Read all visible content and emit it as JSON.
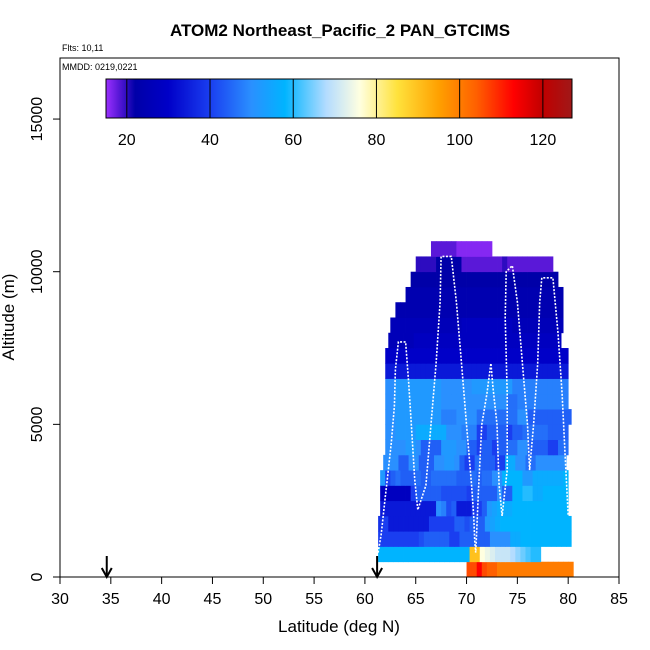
{
  "chart_data": {
    "type": "heatmap",
    "title": "ATOM2 Northeast_Pacific_2 PAN_GTCIMS",
    "flights_label": "Flts: 10,11",
    "dates_label": "MMDD: 0219,0221",
    "xlabel": "Latitude (deg N)",
    "ylabel": "Altitude (m)",
    "xlim": [
      30,
      85
    ],
    "ylim": [
      0,
      17000
    ],
    "xticks": [
      "30",
      "35",
      "40",
      "45",
      "50",
      "55",
      "60",
      "65",
      "70",
      "75",
      "80",
      "85"
    ],
    "yticks": [
      "0",
      "5000",
      "10000",
      "15000"
    ],
    "colorbar": {
      "range": [
        15,
        127
      ],
      "ticks": [
        "20",
        "40",
        "60",
        "80",
        "100",
        "120"
      ],
      "stops": [
        {
          "v": 15,
          "c": "#9b30ff"
        },
        {
          "v": 18,
          "c": "#5a18d8"
        },
        {
          "v": 22,
          "c": "#0000a8"
        },
        {
          "v": 30,
          "c": "#0000c8"
        },
        {
          "v": 40,
          "c": "#1a3ef0"
        },
        {
          "v": 50,
          "c": "#2a90ff"
        },
        {
          "v": 58,
          "c": "#00b4ff"
        },
        {
          "v": 68,
          "c": "#b4dcff"
        },
        {
          "v": 76,
          "c": "#ffffe0"
        },
        {
          "v": 85,
          "c": "#ffe23c"
        },
        {
          "v": 95,
          "c": "#ffa000"
        },
        {
          "v": 104,
          "c": "#ff6000"
        },
        {
          "v": 113,
          "c": "#ff0000"
        },
        {
          "v": 120,
          "c": "#c00000"
        },
        {
          "v": 127,
          "c": "#a01818"
        }
      ]
    },
    "arrows_latitude": [
      34.6,
      61.2
    ],
    "grid_lat0": 61.0,
    "grid_dlat": 0.5,
    "grid_alt_step": 500,
    "rows": [
      {
        "alt": 0,
        "a": 70.0,
        "b": 80.5,
        "s": [
          106,
          106,
          113,
          106,
          104,
          104,
          100,
          100,
          100,
          100,
          100,
          100,
          100,
          100,
          100,
          100,
          100,
          100,
          100,
          100,
          100
        ]
      },
      {
        "alt": 500,
        "a": 61.3,
        "b": 80.5,
        "s": [
          58,
          58,
          58,
          58,
          58,
          58,
          58,
          58,
          58,
          58,
          58,
          58,
          58,
          58,
          58,
          58,
          58,
          58,
          90,
          90,
          76,
          74,
          72,
          70,
          70,
          70,
          68,
          66,
          64,
          62,
          60,
          60
        ]
      },
      {
        "alt": 1000,
        "a": 61.3,
        "b": 80.5,
        "s": [
          40,
          40,
          40,
          40,
          40,
          40,
          40,
          40,
          42,
          44,
          44,
          44,
          44,
          44,
          40,
          40,
          44,
          44,
          44,
          44,
          44,
          44,
          50,
          50,
          50,
          50,
          56,
          56,
          58,
          58,
          58,
          58,
          58,
          58,
          58,
          58,
          58,
          58
        ]
      },
      {
        "alt": 1500,
        "a": 61.3,
        "b": 80.5,
        "s": [
          38,
          40,
          34,
          34,
          34,
          34,
          34,
          34,
          34,
          34,
          40,
          40,
          40,
          40,
          40,
          44,
          44,
          42,
          44,
          44,
          44,
          52,
          54,
          56,
          58,
          58,
          58,
          58,
          58,
          58,
          58,
          58,
          58,
          58,
          58,
          58,
          58,
          58
        ]
      },
      {
        "alt": 2000,
        "a": 61.5,
        "b": 80.5,
        "s": [
          34,
          34,
          34,
          34,
          34,
          34,
          34,
          34,
          34,
          34,
          34,
          50,
          48,
          42,
          44,
          34,
          34,
          34,
          40,
          40,
          44,
          52,
          54,
          56,
          56,
          56,
          58,
          58,
          58,
          58,
          58,
          58,
          58,
          58,
          58,
          58,
          58
        ]
      },
      {
        "alt": 2500,
        "a": 61.5,
        "b": 80.5,
        "s": [
          28,
          28,
          28,
          28,
          28,
          28,
          40,
          44,
          44,
          44,
          44,
          44,
          42,
          42,
          42,
          42,
          42,
          40,
          44,
          44,
          44,
          44,
          44,
          50,
          44,
          44,
          58,
          58,
          60,
          60,
          56,
          56,
          58,
          58,
          58,
          58,
          58
        ]
      },
      {
        "alt": 3000,
        "a": 61.5,
        "b": 80.5,
        "s": [
          52,
          40,
          44,
          46,
          44,
          44,
          44,
          46,
          44,
          44,
          46,
          46,
          46,
          46,
          46,
          44,
          44,
          44,
          46,
          44,
          46,
          46,
          50,
          50,
          58,
          58,
          58,
          58,
          52,
          52,
          56,
          56,
          56,
          56,
          56,
          56,
          58
        ]
      },
      {
        "alt": 3500,
        "a": 61.8,
        "b": 80.5,
        "s": [
          50,
          50,
          50,
          44,
          44,
          50,
          50,
          44,
          44,
          44,
          50,
          50,
          52,
          52,
          50,
          44,
          40,
          40,
          46,
          44,
          44,
          44,
          40,
          40,
          56,
          56,
          50,
          50,
          46,
          46,
          50,
          50,
          50,
          50,
          50,
          50
        ]
      },
      {
        "alt": 4000,
        "a": 62.0,
        "b": 80.5,
        "s": [
          50,
          50,
          50,
          50,
          52,
          52,
          50,
          44,
          44,
          44,
          44,
          52,
          52,
          52,
          50,
          50,
          44,
          44,
          40,
          44,
          44,
          40,
          44,
          44,
          46,
          46,
          50,
          50,
          44,
          44,
          44,
          44,
          40,
          40,
          46,
          46
        ]
      },
      {
        "alt": 4500,
        "a": 62.0,
        "b": 80.5,
        "s": [
          50,
          50,
          52,
          52,
          52,
          52,
          56,
          56,
          56,
          56,
          56,
          56,
          50,
          50,
          50,
          48,
          48,
          48,
          40,
          40,
          44,
          44,
          44,
          44,
          40,
          44,
          44,
          46,
          46,
          46,
          46,
          46,
          44,
          44,
          44,
          44
        ]
      },
      {
        "alt": 5000,
        "a": 62.0,
        "b": 80.3,
        "s": [
          50,
          50,
          52,
          52,
          52,
          52,
          52,
          52,
          52,
          52,
          52,
          48,
          48,
          48,
          50,
          50,
          50,
          50,
          46,
          46,
          46,
          46,
          46,
          46,
          46,
          46,
          50,
          50,
          44,
          44,
          44,
          44,
          44,
          44,
          44,
          44,
          44
        ]
      },
      {
        "alt": 5500,
        "a": 62.0,
        "b": 80.0,
        "s": [
          50,
          50,
          52,
          52,
          52,
          52,
          52,
          52,
          52,
          52,
          52,
          50,
          50,
          50,
          50,
          50,
          50,
          50,
          50,
          50,
          50,
          50,
          50,
          50,
          46,
          46,
          48,
          48,
          48,
          48,
          48,
          48,
          48,
          48,
          48,
          48
        ]
      },
      {
        "alt": 6000,
        "a": 62.0,
        "b": 80.0,
        "s": [
          50,
          50,
          52,
          52,
          52,
          52,
          52,
          52,
          52,
          52,
          52,
          50,
          50,
          50,
          50,
          50,
          50,
          52,
          52,
          52,
          52,
          52,
          52,
          52,
          52,
          48,
          48,
          48,
          48,
          48,
          48,
          48,
          48,
          48,
          48,
          48
        ]
      },
      {
        "alt": 6500,
        "a": 62.0,
        "b": 80.0,
        "s": [
          34,
          34,
          34,
          34,
          34,
          34,
          34,
          34,
          34,
          34,
          34,
          34,
          34,
          34,
          34,
          34,
          34,
          34,
          34,
          34,
          34,
          34,
          34,
          34,
          34,
          34,
          34,
          34,
          34,
          34,
          34,
          34,
          34,
          34,
          34,
          34
        ]
      },
      {
        "alt": 7000,
        "a": 62.0,
        "b": 80.0,
        "s": [
          30,
          30,
          30,
          30,
          30,
          30,
          30,
          30,
          30,
          30,
          30,
          30,
          30,
          30,
          30,
          30,
          30,
          30,
          30,
          30,
          30,
          30,
          30,
          30,
          30,
          30,
          30,
          30,
          30,
          30,
          30,
          30,
          30,
          30,
          30,
          30
        ]
      },
      {
        "alt": 7500,
        "a": 62.3,
        "b": 79.5,
        "s": [
          26,
          26,
          26,
          26,
          26,
          28,
          28,
          28,
          28,
          28,
          28,
          28,
          28,
          28,
          28,
          28,
          28,
          28,
          28,
          28,
          28,
          28,
          28,
          28,
          28,
          28,
          28,
          28,
          28,
          28,
          28,
          28,
          28,
          28
        ]
      },
      {
        "alt": 8000,
        "a": 62.5,
        "b": 79.5,
        "s": [
          26,
          26,
          26,
          26,
          26,
          26,
          26,
          26,
          26,
          26,
          26,
          26,
          26,
          26,
          28,
          28,
          28,
          28,
          28,
          28,
          28,
          28,
          28,
          28,
          26,
          26,
          26,
          26,
          26,
          26,
          26,
          26,
          26,
          26
        ]
      },
      {
        "alt": 8500,
        "a": 63.0,
        "b": 79.5,
        "s": [
          24,
          24,
          24,
          24,
          24,
          24,
          24,
          24,
          24,
          24,
          24,
          24,
          24,
          24,
          24,
          24,
          24,
          24,
          24,
          24,
          24,
          24,
          24,
          24,
          24,
          24,
          24,
          24,
          24,
          24,
          24,
          24,
          24
        ]
      },
      {
        "alt": 9000,
        "a": 64.0,
        "b": 79.5,
        "s": [
          24,
          24,
          24,
          24,
          24,
          24,
          24,
          24,
          24,
          24,
          24,
          24,
          24,
          24,
          24,
          24,
          24,
          24,
          24,
          24,
          24,
          24,
          24,
          24,
          24,
          24,
          24,
          24,
          24,
          24,
          24
        ]
      },
      {
        "alt": 9500,
        "a": 64.5,
        "b": 79.0,
        "s": [
          22,
          22,
          22,
          22,
          22,
          22,
          22,
          22,
          22,
          22,
          22,
          22,
          22,
          22,
          22,
          22,
          22,
          22,
          22,
          22,
          22,
          22,
          22,
          22,
          22,
          22,
          22,
          22,
          22,
          22
        ]
      },
      {
        "alt": 10000,
        "a": 65.0,
        "b": 78.5,
        "s": [
          20,
          20,
          20,
          20,
          22,
          22,
          22,
          22,
          22,
          18,
          18,
          18,
          18,
          18,
          18,
          18,
          18,
          20,
          18,
          18,
          18,
          18,
          18,
          18,
          18,
          18,
          18,
          18,
          18
        ]
      },
      {
        "alt": 10500,
        "a": 66.5,
        "b": 72.5,
        "s": [
          18,
          18,
          18,
          18,
          18,
          16,
          16,
          16,
          16,
          16,
          16,
          16,
          16
        ]
      }
    ],
    "flight_track": [
      [
        [
          61.3,
          800
        ],
        [
          61.6,
          1400
        ],
        [
          61.8,
          2000
        ],
        [
          62.0,
          2600
        ],
        [
          62.2,
          3200
        ],
        [
          62.6,
          4400
        ],
        [
          62.9,
          5600
        ],
        [
          63.0,
          6800
        ],
        [
          63.3,
          7700
        ],
        [
          64.0,
          7700
        ],
        [
          64.3,
          6400
        ],
        [
          64.6,
          4800
        ],
        [
          64.9,
          3200
        ],
        [
          65.2,
          2200
        ],
        [
          66.0,
          3000
        ],
        [
          66.5,
          5000
        ],
        [
          67.0,
          7000
        ],
        [
          67.4,
          9000
        ],
        [
          67.5,
          10500
        ],
        [
          68.5,
          10500
        ],
        [
          69.0,
          9000
        ],
        [
          69.5,
          7000
        ],
        [
          70.0,
          5000
        ],
        [
          70.5,
          3000
        ],
        [
          70.7,
          2000
        ],
        [
          70.8,
          1200
        ],
        [
          70.9,
          800
        ],
        [
          71.0,
          1500
        ],
        [
          71.2,
          3000
        ],
        [
          71.5,
          5000
        ],
        [
          72.0,
          6000
        ],
        [
          72.4,
          7000
        ],
        [
          72.6,
          6200
        ],
        [
          73.0,
          5000
        ],
        [
          73.2,
          3000
        ],
        [
          73.5,
          2000
        ],
        [
          74.0,
          3500
        ],
        [
          74.0,
          6000
        ],
        [
          73.8,
          8500
        ],
        [
          73.9,
          10000
        ],
        [
          74.5,
          10200
        ],
        [
          75.0,
          9000
        ],
        [
          75.5,
          7000
        ],
        [
          76.0,
          5000
        ],
        [
          76.2,
          3500
        ],
        [
          76.6,
          5000
        ],
        [
          77.0,
          7000
        ],
        [
          77.2,
          9000
        ],
        [
          77.4,
          9800
        ],
        [
          78.5,
          9800
        ],
        [
          79.0,
          8000
        ],
        [
          79.4,
          6000
        ],
        [
          79.7,
          4000
        ],
        [
          80.0,
          2000
        ]
      ]
    ]
  }
}
